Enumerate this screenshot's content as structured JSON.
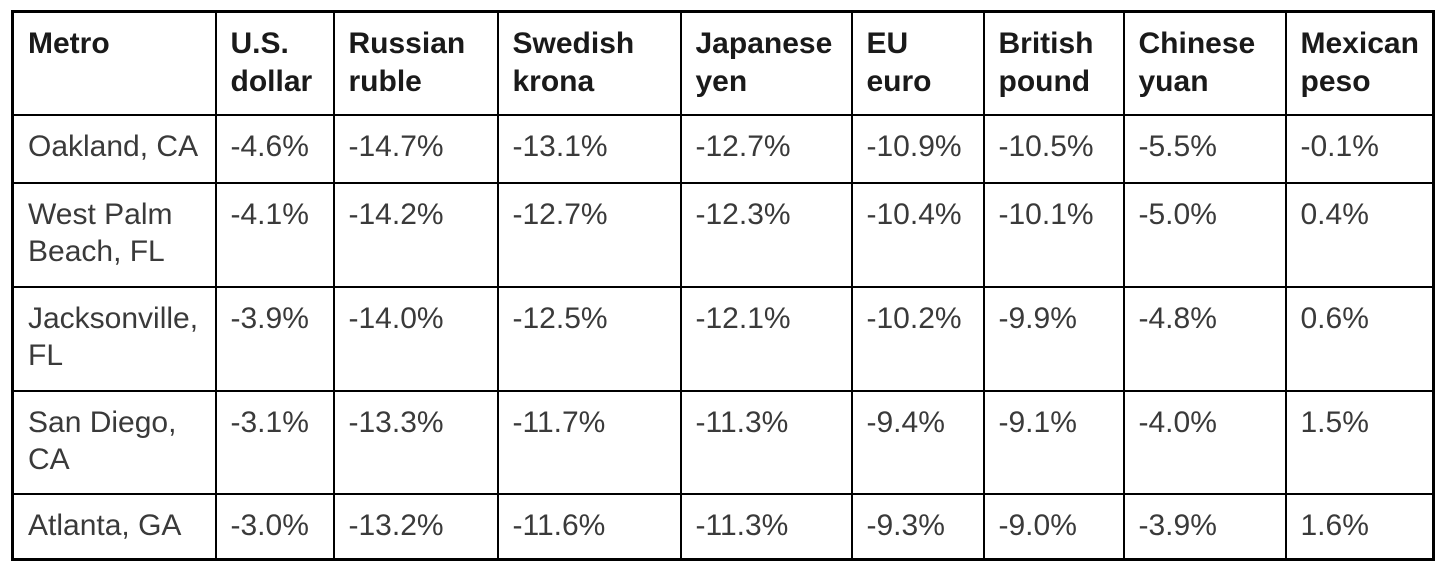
{
  "chart_data": {
    "type": "table",
    "title": "",
    "columns": [
      "Metro",
      "U.S. dollar",
      "Russian ruble",
      "Swedish krona",
      "Japanese yen",
      "EU euro",
      "British pound",
      "Chinese yuan",
      "Mexican peso"
    ],
    "rows": [
      {
        "metro": "Oakland, CA",
        "cells": [
          "-4.6%",
          "-14.7%",
          "-13.1%",
          "-12.7%",
          "-10.9%",
          "-10.5%",
          "-5.5%",
          "-0.1%"
        ]
      },
      {
        "metro": "West Palm Beach, FL",
        "cells": [
          "-4.1%",
          "-14.2%",
          "-12.7%",
          "-12.3%",
          "-10.4%",
          "-10.1%",
          "-5.0%",
          "0.4%"
        ]
      },
      {
        "metro": "Jacksonville, FL",
        "cells": [
          "-3.9%",
          "-14.0%",
          "-12.5%",
          "-12.1%",
          "-10.2%",
          "-9.9%",
          "-4.8%",
          "0.6%"
        ]
      },
      {
        "metro": "San Diego, CA",
        "cells": [
          "-3.1%",
          "-13.3%",
          "-11.7%",
          "-11.3%",
          "-9.4%",
          "-9.1%",
          "-4.0%",
          "1.5%"
        ]
      },
      {
        "metro": "Atlanta, GA",
        "cells": [
          "-3.0%",
          "-13.2%",
          "-11.6%",
          "-11.3%",
          "-9.3%",
          "-9.0%",
          "-3.9%",
          "1.6%"
        ]
      }
    ]
  },
  "colors": {
    "background": "#ffffff",
    "border": "#000000",
    "header_text": "#1a1a1a",
    "cell_text": "#3a3a3a"
  }
}
